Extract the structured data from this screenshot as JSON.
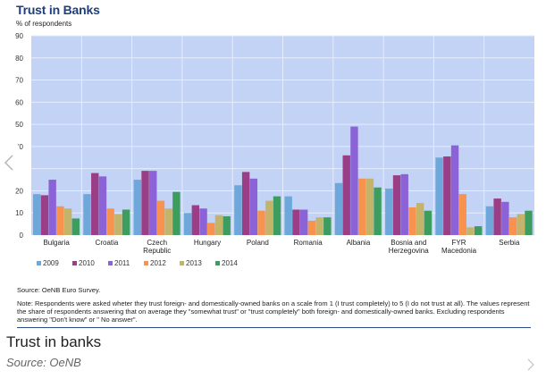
{
  "chart_data": {
    "type": "bar",
    "title": "Trust in Banks",
    "ylabel": "% of respondents",
    "xlabel": "",
    "ylim": [
      0,
      90
    ],
    "yticks": [
      0,
      10,
      20,
      30,
      40,
      50,
      60,
      70,
      80,
      90
    ],
    "ytick_labels": [
      "0",
      "10",
      "20",
      "",
      "'0",
      "50",
      "60",
      "70",
      "80",
      "90"
    ],
    "grid": true,
    "legend_position": "bottom-left",
    "categories": [
      [
        "Bulgaria"
      ],
      [
        "Croatia"
      ],
      [
        "Czech",
        "Republic"
      ],
      [
        "Hungary"
      ],
      [
        "Poland"
      ],
      [
        "Romania"
      ],
      [
        "Albania"
      ],
      [
        "Bosnia and",
        "Herzegovina"
      ],
      [
        "FYR",
        "Macedonia"
      ],
      [
        "Serbia"
      ]
    ],
    "series": [
      {
        "name": "2009",
        "color": "#6ea8da",
        "values": [
          18.5,
          18.5,
          25,
          10,
          22.5,
          17.5,
          23.5,
          21,
          35,
          13
        ]
      },
      {
        "name": "2010",
        "color": "#9a3f87",
        "values": [
          18,
          28,
          29,
          13.5,
          28.5,
          11.5,
          36,
          27,
          35.5,
          16.5
        ]
      },
      {
        "name": "2011",
        "color": "#8b63d6",
        "values": [
          25,
          26.5,
          29,
          12,
          25.5,
          11.5,
          49,
          27.5,
          40.5,
          15
        ]
      },
      {
        "name": "2012",
        "color": "#f7934f",
        "values": [
          13,
          12,
          15.5,
          5.5,
          11,
          6.5,
          25.5,
          12.5,
          18.5,
          8
        ]
      },
      {
        "name": "2013",
        "color": "#c4b46a",
        "values": [
          12,
          9.5,
          12,
          9,
          15.5,
          8,
          25.5,
          14.5,
          3.5,
          9.5
        ]
      },
      {
        "name": "2014",
        "color": "#3d9d5e",
        "values": [
          7.5,
          11.5,
          19.5,
          8.5,
          17.5,
          8,
          21.5,
          11,
          4,
          11
        ]
      }
    ],
    "plot_background": "#c3d3f6",
    "gridline_color": "#e6ecfb"
  },
  "footer": {
    "source": "Source: OeNB Euro Survey.",
    "note": "Note: Respondents were asked wheter they trust foreign- and domestically-owned  banks on a scale from 1 (I trust completely) to 5 (I do not trust at all). The values represent the share of respondents answering that on average  they \"somewhat trust\" or \"trust completely\" both foreign- and domestically-owned banks. Excluding respondents  answering \"Don't know\" or \" No answer\"."
  },
  "caption": {
    "title": "Trust in banks",
    "source": "Source: OeNB"
  },
  "nav": {
    "prev_icon": "chevron-left-icon",
    "next_icon": "chevron-right-icon"
  }
}
